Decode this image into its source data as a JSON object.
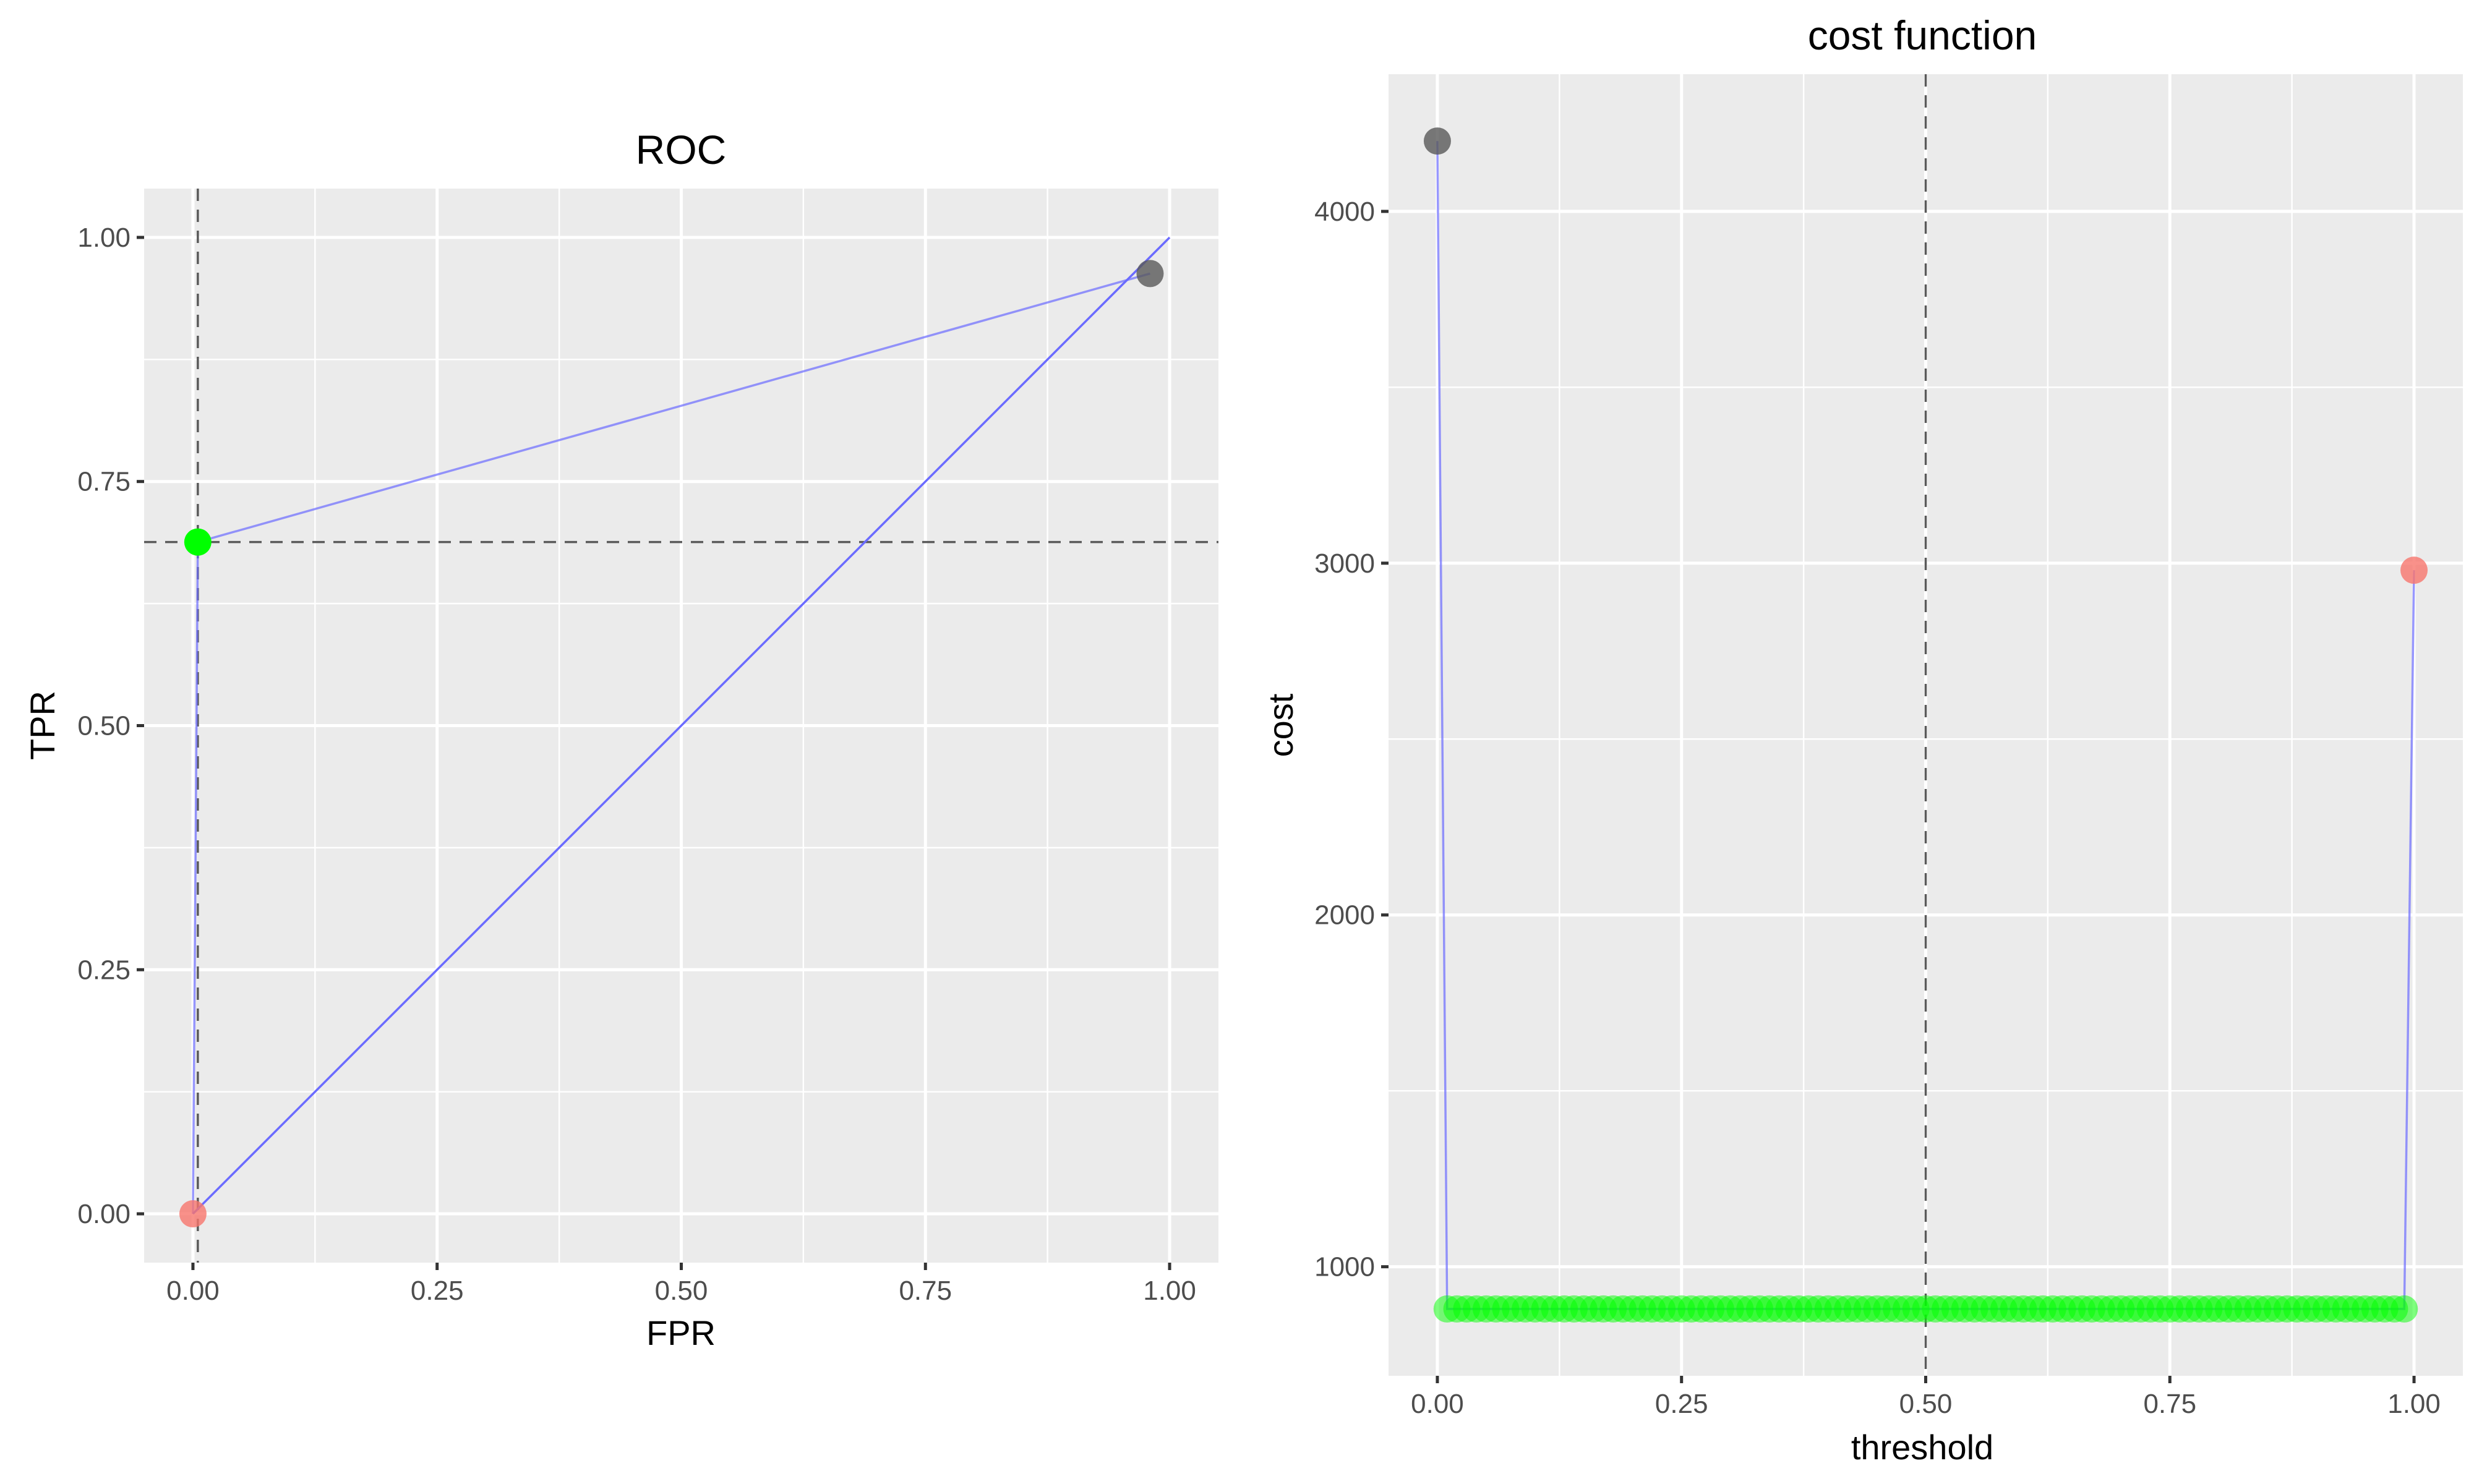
{
  "colors": {
    "panel_background": "#ebebeb",
    "grid": "#ffffff",
    "curve": "#6b6bff",
    "highlight_point": "#00ff00",
    "start_point": "#f8766d",
    "end_point": "#595959",
    "reference_line": "#5a5a5a"
  },
  "chart_data": [
    {
      "type": "line",
      "title": "ROC",
      "xlabel": "FPR",
      "ylabel": "TPR",
      "xlim": [
        -0.05,
        1.05
      ],
      "ylim": [
        -0.05,
        1.05
      ],
      "x_ticks": [
        "0.00",
        "0.25",
        "0.50",
        "0.75",
        "1.00"
      ],
      "y_ticks": [
        "0.00",
        "0.25",
        "0.50",
        "0.75",
        "1.00"
      ],
      "grid": true,
      "series": [
        {
          "x": [
            0.0,
            0.005,
            0.98
          ],
          "y": [
            0.0,
            0.688,
            0.963
          ]
        }
      ],
      "diagonal": {
        "x": [
          0.0,
          1.0
        ],
        "y": [
          0.0,
          1.0
        ]
      },
      "reference_lines": {
        "vertical_x": 0.005,
        "horizontal_y": 0.688
      },
      "highlighted_points": [
        {
          "x": 0.0,
          "y": 0.0,
          "color": "#f8766d"
        },
        {
          "x": 0.005,
          "y": 0.688,
          "color": "#00ff00"
        },
        {
          "x": 0.98,
          "y": 0.963,
          "color": "#595959"
        }
      ]
    },
    {
      "type": "line",
      "title": "cost function",
      "xlabel": "threshold",
      "ylabel": "cost",
      "xlim": [
        -0.05,
        1.05
      ],
      "ylim": [
        690,
        4390
      ],
      "x_ticks": [
        "0.00",
        "0.25",
        "0.50",
        "0.75",
        "1.00"
      ],
      "y_ticks": [
        "1000",
        "2000",
        "3000",
        "4000"
      ],
      "grid": true,
      "series": [
        {
          "x": [
            0.0,
            0.01,
            0.99,
            1.0
          ],
          "y": [
            4200,
            880,
            880,
            2980
          ]
        }
      ],
      "reference_lines": {
        "vertical_x": 0.5
      },
      "highlighted_points": [
        {
          "x": 0.0,
          "y": 4200,
          "color": "#595959"
        },
        {
          "x": 1.0,
          "y": 2980,
          "color": "#f8766d"
        }
      ],
      "plateau_points": {
        "x_from": 0.01,
        "x_to": 0.99,
        "count": 99,
        "y": 880,
        "color": "#00ff00"
      }
    }
  ]
}
